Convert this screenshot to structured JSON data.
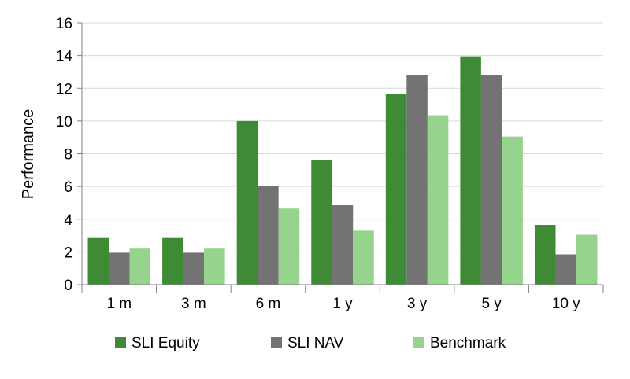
{
  "chart_data": {
    "type": "bar",
    "title": "",
    "xlabel": "",
    "ylabel": "Performance",
    "ylim": [
      0,
      16
    ],
    "yticks": [
      0,
      2,
      4,
      6,
      8,
      10,
      12,
      14,
      16
    ],
    "grid": true,
    "legend": "bottom",
    "categories": [
      "1 m",
      "3 m",
      "6 m",
      "1 y",
      "3 y",
      "5 y",
      "10 y"
    ],
    "series": [
      {
        "name": "SLI Equity",
        "color": "#3f8a35",
        "values": [
          2.85,
          2.85,
          10.0,
          7.6,
          11.65,
          13.95,
          3.65
        ]
      },
      {
        "name": "SLI NAV",
        "color": "#737373",
        "values": [
          1.95,
          1.95,
          6.05,
          4.85,
          12.8,
          12.8,
          1.85
        ]
      },
      {
        "name": "Benchmark",
        "color": "#96d38c",
        "values": [
          2.2,
          2.2,
          4.65,
          3.3,
          10.35,
          9.05,
          3.05
        ]
      }
    ]
  }
}
